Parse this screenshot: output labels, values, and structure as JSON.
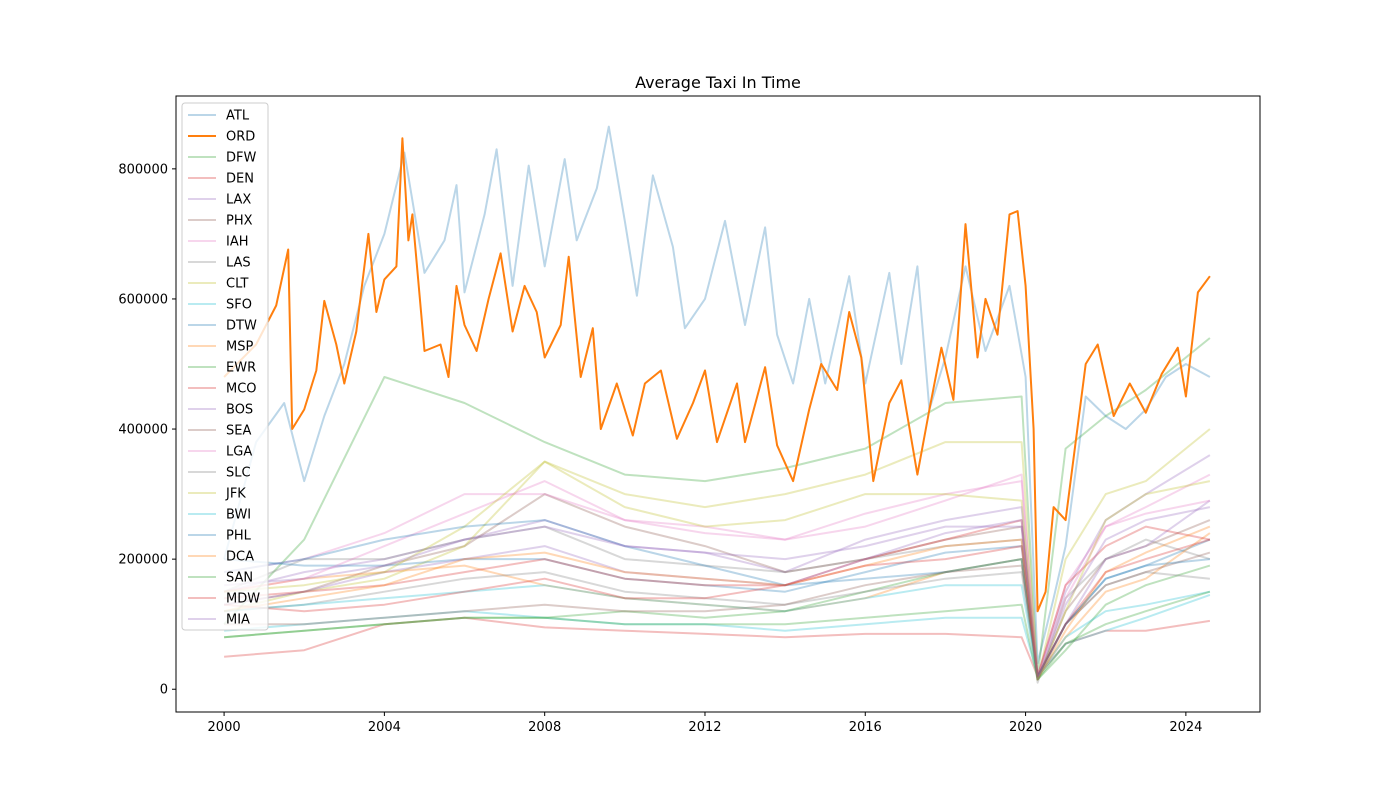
{
  "chart_data": {
    "type": "line",
    "title": "Average Taxi In Time",
    "xlabel": "",
    "ylabel": "",
    "xlim": [
      1998.8,
      2025.85
    ],
    "ylim": [
      -35000,
      912000
    ],
    "x_ticks": [
      2000,
      2004,
      2008,
      2012,
      2016,
      2020,
      2024
    ],
    "x_tick_labels": [
      "2000",
      "2004",
      "2008",
      "2012",
      "2016",
      "2020",
      "2024"
    ],
    "y_ticks": [
      0,
      200000,
      400000,
      600000,
      800000
    ],
    "y_tick_labels": [
      "0",
      "200000",
      "400000",
      "600000",
      "800000"
    ],
    "grid": false,
    "legend_position": "top-left",
    "palette": [
      "#1f77b4",
      "#ff7f0e",
      "#2ca02c",
      "#d62728",
      "#9467bd",
      "#8c564b",
      "#e377c2",
      "#7f7f7f",
      "#bcbd22",
      "#17becf"
    ],
    "shared_x": [
      2000,
      2002,
      2004,
      2006,
      2008,
      2010,
      2012,
      2014,
      2016,
      2018,
      2019.9,
      2020.3,
      2021,
      2022,
      2023,
      2024.6
    ],
    "series": [
      {
        "name": "ATL",
        "alpha": 0.3,
        "x": [
          2000,
          2000.8,
          2001.5,
          2002,
          2002.5,
          2003,
          2003.5,
          2004,
          2004.5,
          2005,
          2005.5,
          2005.8,
          2006,
          2006.5,
          2006.8,
          2007.2,
          2007.6,
          2008,
          2008.5,
          2008.8,
          2009.3,
          2009.6,
          2010,
          2010.3,
          2010.7,
          2011.2,
          2011.5,
          2012,
          2012.5,
          2013,
          2013.5,
          2013.8,
          2014.2,
          2014.6,
          2015,
          2015.6,
          2016,
          2016.6,
          2016.9,
          2017.3,
          2017.6,
          2018,
          2018.5,
          2019,
          2019.6,
          2020,
          2020.3,
          2020.7,
          2021,
          2021.5,
          2022,
          2022.5,
          2023,
          2023.5,
          2024,
          2024.6
        ],
        "values": [
          200000,
          380000,
          440000,
          320000,
          420000,
          500000,
          620000,
          700000,
          825000,
          640000,
          690000,
          775000,
          610000,
          730000,
          830000,
          620000,
          805000,
          650000,
          815000,
          690000,
          770000,
          865000,
          720000,
          605000,
          790000,
          680000,
          555000,
          600000,
          720000,
          560000,
          710000,
          545000,
          470000,
          600000,
          470000,
          635000,
          470000,
          640000,
          500000,
          650000,
          430000,
          510000,
          650000,
          520000,
          620000,
          480000,
          40000,
          140000,
          220000,
          450000,
          420000,
          400000,
          430000,
          480000,
          500000,
          480000
        ]
      },
      {
        "name": "ORD",
        "alpha": 1.0,
        "x": [
          2000,
          2000.8,
          2001.3,
          2001.6,
          2001.7,
          2002,
          2002.3,
          2002.5,
          2002.8,
          2003,
          2003.3,
          2003.6,
          2003.8,
          2004,
          2004.3,
          2004.45,
          2004.6,
          2004.7,
          2005,
          2005.4,
          2005.6,
          2005.8,
          2006,
          2006.3,
          2006.6,
          2006.9,
          2007.2,
          2007.5,
          2007.8,
          2008,
          2008.4,
          2008.6,
          2008.9,
          2009.2,
          2009.4,
          2009.8,
          2010.2,
          2010.5,
          2010.9,
          2011.3,
          2011.7,
          2012,
          2012.3,
          2012.8,
          2013,
          2013.5,
          2013.8,
          2014.2,
          2014.6,
          2014.9,
          2015.3,
          2015.6,
          2015.9,
          2016.2,
          2016.6,
          2016.9,
          2017.3,
          2017.6,
          2017.9,
          2018.2,
          2018.5,
          2018.8,
          2019,
          2019.3,
          2019.6,
          2019.8,
          2020,
          2020.2,
          2020.3,
          2020.5,
          2020.7,
          2021,
          2021.5,
          2021.8,
          2022.2,
          2022.6,
          2023,
          2023.4,
          2023.8,
          2024,
          2024.3,
          2024.6
        ],
        "values": [
          480000,
          530000,
          590000,
          676000,
          400000,
          430000,
          490000,
          597000,
          530000,
          470000,
          550000,
          700000,
          580000,
          630000,
          650000,
          847000,
          690000,
          730000,
          520000,
          530000,
          480000,
          620000,
          560000,
          520000,
          600000,
          670000,
          550000,
          620000,
          580000,
          510000,
          560000,
          665000,
          480000,
          555000,
          400000,
          470000,
          390000,
          470000,
          490000,
          385000,
          440000,
          490000,
          380000,
          470000,
          380000,
          495000,
          375000,
          320000,
          430000,
          500000,
          460000,
          580000,
          510000,
          320000,
          440000,
          475000,
          330000,
          430000,
          525000,
          445000,
          715000,
          510000,
          600000,
          545000,
          730000,
          735000,
          620000,
          400000,
          120000,
          150000,
          280000,
          260000,
          500000,
          530000,
          420000,
          470000,
          425000,
          485000,
          525000,
          450000,
          610000,
          635000
        ]
      },
      {
        "name": "DFW",
        "alpha": 0.3,
        "values": [
          100000,
          230000,
          480000,
          440000,
          380000,
          330000,
          320000,
          340000,
          370000,
          440000,
          450000,
          20000,
          370000,
          420000,
          460000,
          540000
        ]
      },
      {
        "name": "DEN",
        "alpha": 0.3,
        "values": [
          50000,
          60000,
          100000,
          110000,
          95000,
          90000,
          85000,
          80000,
          85000,
          85000,
          80000,
          20000,
          70000,
          90000,
          90000,
          105000
        ]
      },
      {
        "name": "LAX",
        "alpha": 0.3,
        "values": [
          150000,
          180000,
          200000,
          230000,
          260000,
          220000,
          210000,
          180000,
          230000,
          260000,
          280000,
          20000,
          150000,
          260000,
          300000,
          360000
        ]
      },
      {
        "name": "PHX",
        "alpha": 0.3,
        "values": [
          130000,
          150000,
          190000,
          220000,
          300000,
          250000,
          220000,
          180000,
          200000,
          230000,
          250000,
          15000,
          120000,
          200000,
          220000,
          260000
        ]
      },
      {
        "name": "IAH",
        "alpha": 0.3,
        "values": [
          180000,
          200000,
          240000,
          300000,
          300000,
          260000,
          250000,
          230000,
          250000,
          290000,
          330000,
          20000,
          160000,
          250000,
          280000,
          330000
        ]
      },
      {
        "name": "LAS",
        "alpha": 0.3,
        "values": [
          150000,
          200000,
          200000,
          230000,
          250000,
          200000,
          190000,
          180000,
          200000,
          220000,
          230000,
          10000,
          140000,
          200000,
          230000,
          200000
        ]
      },
      {
        "name": "CLT",
        "alpha": 0.3,
        "values": [
          120000,
          150000,
          170000,
          220000,
          350000,
          300000,
          280000,
          300000,
          330000,
          380000,
          380000,
          15000,
          200000,
          300000,
          320000,
          400000
        ]
      },
      {
        "name": "SFO",
        "alpha": 0.3,
        "values": [
          90000,
          100000,
          110000,
          120000,
          110000,
          100000,
          100000,
          90000,
          100000,
          110000,
          110000,
          20000,
          70000,
          90000,
          110000,
          145000
        ]
      },
      {
        "name": "DTW",
        "alpha": 0.3,
        "values": [
          200000,
          190000,
          190000,
          200000,
          200000,
          170000,
          160000,
          150000,
          180000,
          210000,
          220000,
          20000,
          100000,
          170000,
          190000,
          230000
        ]
      },
      {
        "name": "MSP",
        "alpha": 0.3,
        "values": [
          150000,
          170000,
          180000,
          190000,
          160000,
          140000,
          130000,
          120000,
          140000,
          180000,
          200000,
          20000,
          80000,
          150000,
          170000,
          240000
        ]
      },
      {
        "name": "EWR",
        "alpha": 0.3,
        "values": [
          80000,
          90000,
          100000,
          110000,
          110000,
          120000,
          110000,
          120000,
          150000,
          180000,
          200000,
          15000,
          60000,
          130000,
          160000,
          190000
        ]
      },
      {
        "name": "MCO",
        "alpha": 0.3,
        "values": [
          140000,
          150000,
          160000,
          180000,
          200000,
          170000,
          160000,
          160000,
          200000,
          230000,
          260000,
          20000,
          160000,
          220000,
          250000,
          230000
        ]
      },
      {
        "name": "BOS",
        "alpha": 0.3,
        "values": [
          130000,
          150000,
          180000,
          200000,
          220000,
          180000,
          170000,
          160000,
          200000,
          240000,
          260000,
          20000,
          100000,
          200000,
          220000,
          290000
        ]
      },
      {
        "name": "SEA",
        "alpha": 0.3,
        "values": [
          100000,
          100000,
          110000,
          120000,
          130000,
          120000,
          120000,
          130000,
          160000,
          180000,
          190000,
          20000,
          100000,
          160000,
          180000,
          210000
        ]
      },
      {
        "name": "LGA",
        "alpha": 0.3,
        "values": [
          150000,
          170000,
          220000,
          270000,
          320000,
          260000,
          240000,
          230000,
          270000,
          300000,
          320000,
          20000,
          140000,
          250000,
          270000,
          290000
        ]
      },
      {
        "name": "SLC",
        "alpha": 0.3,
        "values": [
          120000,
          130000,
          150000,
          170000,
          180000,
          150000,
          140000,
          130000,
          150000,
          170000,
          180000,
          15000,
          100000,
          160000,
          180000,
          170000
        ]
      },
      {
        "name": "JFK",
        "alpha": 0.3,
        "values": [
          150000,
          160000,
          180000,
          250000,
          350000,
          280000,
          250000,
          260000,
          300000,
          300000,
          290000,
          15000,
          120000,
          260000,
          300000,
          320000
        ]
      },
      {
        "name": "BWI",
        "alpha": 0.3,
        "values": [
          120000,
          130000,
          140000,
          150000,
          160000,
          140000,
          130000,
          120000,
          140000,
          160000,
          160000,
          20000,
          80000,
          120000,
          130000,
          150000
        ]
      },
      {
        "name": "PHL",
        "alpha": 0.3,
        "values": [
          180000,
          200000,
          230000,
          250000,
          260000,
          220000,
          190000,
          160000,
          170000,
          180000,
          200000,
          20000,
          100000,
          170000,
          190000,
          200000
        ]
      },
      {
        "name": "DCA",
        "alpha": 0.3,
        "values": [
          120000,
          140000,
          160000,
          200000,
          210000,
          180000,
          170000,
          160000,
          190000,
          220000,
          230000,
          15000,
          90000,
          180000,
          210000,
          250000
        ]
      },
      {
        "name": "SAN",
        "alpha": 0.3,
        "values": [
          80000,
          90000,
          100000,
          110000,
          110000,
          100000,
          100000,
          100000,
          110000,
          120000,
          130000,
          15000,
          70000,
          100000,
          120000,
          150000
        ]
      },
      {
        "name": "MDW",
        "alpha": 0.3,
        "values": [
          130000,
          120000,
          130000,
          150000,
          170000,
          140000,
          140000,
          160000,
          190000,
          200000,
          220000,
          20000,
          100000,
          180000,
          200000,
          230000
        ]
      },
      {
        "name": "MIA",
        "alpha": 0.3,
        "values": [
          160000,
          170000,
          190000,
          230000,
          250000,
          220000,
          210000,
          200000,
          220000,
          250000,
          250000,
          15000,
          130000,
          230000,
          260000,
          280000
        ]
      }
    ]
  }
}
